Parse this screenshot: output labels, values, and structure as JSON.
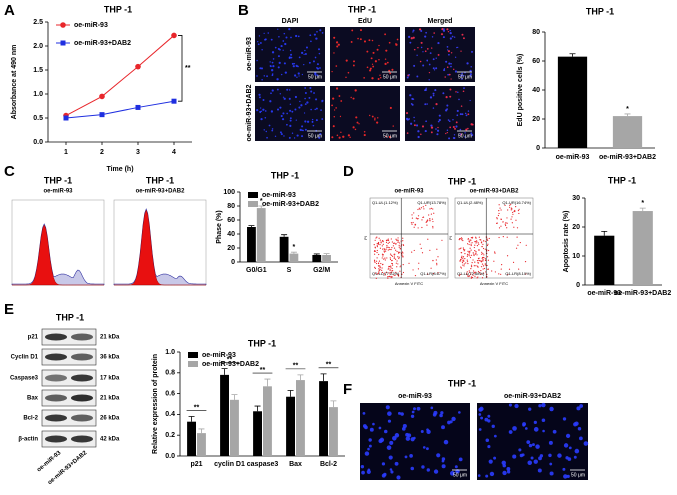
{
  "panel_letters": [
    "A",
    "B",
    "C",
    "D",
    "E",
    "F"
  ],
  "panel_b_images": {
    "title": "THP -1",
    "columns": [
      "DAPI",
      "EdU",
      "Merged"
    ],
    "rows": [
      "oe-miR-93",
      "oe-miR-93+DAB2"
    ],
    "scale_bar": "50 μm"
  },
  "panel_c_histograms": [
    {
      "title": "THP -1",
      "group": "oe-miR-93"
    },
    {
      "title": "THP -1",
      "group": "oe-miR-93+DAB2"
    }
  ],
  "panel_d_scatter": {
    "title": "THP -1",
    "x_label": "Annexin V FITC",
    "y_label": "PI",
    "plots": [
      {
        "group": "oe-miR-93",
        "quadrants": [
          "Q1-UL(1.12%)",
          "Q1-UR(13.78%)",
          "Q1-LL(77.22%)",
          "Q1-LR(8.67%)"
        ]
      },
      {
        "group": "oe-miR-93+DAB2",
        "quadrants": [
          "Q1-UL(2.48%)",
          "Q1-UR(16.74%)",
          "Q1-LL(72.68%)",
          "Q1-LR(8.10%)"
        ]
      }
    ]
  },
  "panel_e_blot": {
    "title": "THP -1",
    "proteins": [
      "p21",
      "Cyclin D1",
      "Caspase3",
      "Bax",
      "Bcl-2",
      "β-actin"
    ],
    "sizes": [
      "21 kDa",
      "36 kDa",
      "17 kDa",
      "21 kDa",
      "26 kDa",
      "42 kDa"
    ],
    "lanes": [
      "oe-miR-93",
      "oe-miR-93+DAB2"
    ]
  },
  "panel_f_images": {
    "title": "THP -1",
    "columns": [
      "oe-miR-93",
      "oe-miR-93+DAB2"
    ],
    "scale_bar": "50 μm"
  },
  "chart_data": [
    {
      "type": "line",
      "title": "THP -1",
      "x_label": "Time (h)",
      "y_label": "Absorbance at 490 nm",
      "x": [
        1,
        2,
        3,
        4
      ],
      "xlim": [
        0.5,
        4.5
      ],
      "xticks": [
        1,
        2,
        3,
        4
      ],
      "ylim": [
        0,
        2.5
      ],
      "yticks": [
        {
          "value": 0,
          "label": "0.0"
        },
        0.5,
        {
          "value": 1,
          "label": "1.0"
        },
        1.5,
        {
          "value": 2,
          "label": "2.0"
        },
        2.5
      ],
      "series": [
        {
          "name": "oe-miR-93",
          "color": "#e8262b",
          "marker": "circle",
          "values": [
            0.55,
            0.95,
            1.57,
            2.22
          ]
        },
        {
          "name": "oe-miR-93+DAB2",
          "color": "#1f2fe0",
          "marker": "square",
          "values": [
            0.5,
            0.57,
            0.72,
            0.85
          ]
        }
      ],
      "legend": "upper left",
      "annotations": [
        "**"
      ]
    },
    {
      "type": "bar",
      "title": "THP -1",
      "y_label": "EdU positive cells (%)",
      "categories": [
        "oe-miR-93",
        "oe-miR-93+DAB2"
      ],
      "values": [
        63,
        22
      ],
      "errors": [
        2,
        1.5
      ],
      "colors": [
        "#000000",
        "#a6a6a6"
      ],
      "ylim": [
        0,
        80
      ],
      "yticks": [
        0,
        20,
        40,
        60,
        80
      ],
      "annotations": [
        "*"
      ]
    },
    {
      "type": "bar",
      "title": "THP -1",
      "y_label": "Phase (%)",
      "categories": [
        "G0/G1",
        "S",
        "G2/M"
      ],
      "series": [
        {
          "name": "oe-miR-93",
          "color": "#000000",
          "values": [
            50,
            36,
            10
          ],
          "errors": [
            2,
            3,
            1.5
          ]
        },
        {
          "name": "oe-miR-93+DAB2",
          "color": "#a6a6a6",
          "values": [
            77,
            12,
            10
          ],
          "errors": [
            3,
            2,
            2
          ]
        }
      ],
      "ylim": [
        0,
        100
      ],
      "yticks": [
        0,
        20,
        40,
        60,
        80,
        100
      ],
      "legend": "upper left",
      "annotations": [
        "*",
        "*"
      ]
    },
    {
      "type": "bar",
      "title": "THP -1",
      "y_label": "Apoptosis rate (%)",
      "categories": [
        "oe-miR-93",
        "oe-miR-93+DAB2"
      ],
      "values": [
        17,
        25.5
      ],
      "errors": [
        1.5,
        1
      ],
      "colors": [
        "#000000",
        "#a6a6a6"
      ],
      "ylim": [
        0,
        30
      ],
      "yticks": [
        0,
        10,
        20,
        30
      ],
      "annotations": [
        "*"
      ]
    },
    {
      "type": "bar",
      "title": "THP -1",
      "y_label": "Relative expression of protein",
      "categories": [
        "p21",
        "cyclin D1",
        "caspase3",
        "Bax",
        "Bcl-2"
      ],
      "series": [
        {
          "name": "oe-miR-93",
          "color": "#000000",
          "values": [
            0.33,
            0.78,
            0.43,
            0.57,
            0.72
          ],
          "errors": [
            0.05,
            0.06,
            0.05,
            0.06,
            0.07
          ]
        },
        {
          "name": "oe-miR-93+DAB2",
          "color": "#a6a6a6",
          "values": [
            0.22,
            0.54,
            0.67,
            0.73,
            0.47
          ],
          "errors": [
            0.04,
            0.05,
            0.07,
            0.05,
            0.06
          ]
        }
      ],
      "ylim": [
        0,
        1
      ],
      "yticks": [
        {
          "value": 0,
          "label": "0.0"
        },
        0.2,
        0.4,
        0.6,
        0.8,
        {
          "value": 1,
          "label": "1.0"
        }
      ],
      "legend": "upper left",
      "annotations": [
        "**",
        "**",
        "**",
        "**",
        "**"
      ]
    }
  ]
}
